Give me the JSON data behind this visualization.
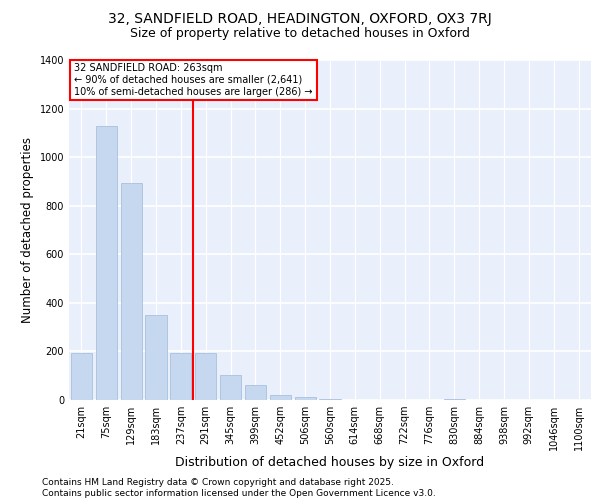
{
  "title1": "32, SANDFIELD ROAD, HEADINGTON, OXFORD, OX3 7RJ",
  "title2": "Size of property relative to detached houses in Oxford",
  "xlabel": "Distribution of detached houses by size in Oxford",
  "ylabel": "Number of detached properties",
  "bar_labels": [
    "21sqm",
    "75sqm",
    "129sqm",
    "183sqm",
    "237sqm",
    "291sqm",
    "345sqm",
    "399sqm",
    "452sqm",
    "506sqm",
    "560sqm",
    "614sqm",
    "668sqm",
    "722sqm",
    "776sqm",
    "830sqm",
    "884sqm",
    "938sqm",
    "992sqm",
    "1046sqm",
    "1100sqm"
  ],
  "bar_values": [
    195,
    1130,
    893,
    350,
    193,
    193,
    103,
    60,
    20,
    12,
    5,
    0,
    0,
    0,
    0,
    5,
    0,
    0,
    0,
    0,
    0
  ],
  "bar_color": "#c5d8f0",
  "bar_edgecolor": "#a0b8d8",
  "vline_x": 4.5,
  "vline_color": "red",
  "annotation_line1": "32 SANDFIELD ROAD: 263sqm",
  "annotation_line2": "← 90% of detached houses are smaller (2,641)",
  "annotation_line3": "10% of semi-detached houses are larger (286) →",
  "ylim": [
    0,
    1400
  ],
  "background_color": "#eaf0fb",
  "footer": "Contains HM Land Registry data © Crown copyright and database right 2025.\nContains public sector information licensed under the Open Government Licence v3.0.",
  "title_fontsize": 10,
  "subtitle_fontsize": 9,
  "xlabel_fontsize": 9,
  "ylabel_fontsize": 8.5,
  "tick_fontsize": 7,
  "footer_fontsize": 6.5,
  "annotation_fontsize": 7
}
